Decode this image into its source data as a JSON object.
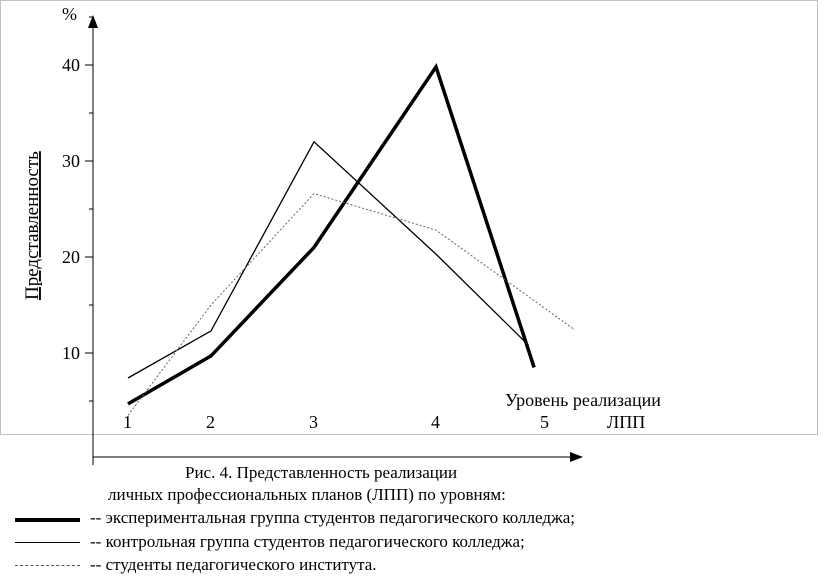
{
  "chart_data": {
    "type": "line",
    "ylabel": "Представленность",
    "y_unit": "%",
    "xlabel_line1": "Уровень реализации",
    "xlabel_line2": "ЛПП",
    "x_ticks": [
      "1",
      "2",
      "3",
      "4",
      "5"
    ],
    "y_ticks": [
      10,
      20,
      30,
      40
    ],
    "ylim": [
      0,
      45
    ],
    "grid": false,
    "series": [
      {
        "name": "экспериментальная группа студентов педагогического колледжа",
        "style": "thick",
        "color": "#000000",
        "points": [
          [
            1,
            4.7
          ],
          [
            2,
            9.7
          ],
          [
            3,
            21
          ],
          [
            4,
            39.8
          ],
          [
            4.9,
            8.5
          ]
        ]
      },
      {
        "name": "контрольная группа студентов педагогического колледжа",
        "style": "thin",
        "color": "#000000",
        "points": [
          [
            1,
            7.4
          ],
          [
            2,
            12.3
          ],
          [
            3,
            32
          ],
          [
            4,
            20.3
          ],
          [
            4.85,
            10.8
          ]
        ]
      },
      {
        "name": "студенты педагогического института",
        "style": "dotted",
        "color": "#777777",
        "points": [
          [
            1,
            3.5
          ],
          [
            2,
            15
          ],
          [
            3,
            26.6
          ],
          [
            4,
            22.8
          ],
          [
            5.3,
            12.4
          ]
        ]
      }
    ]
  },
  "caption": {
    "line1": "Рис. 4. Представленность реализации",
    "line2": "личных профессиональных планов (ЛПП) по уровням:"
  },
  "legend": [
    {
      "prefix": "--",
      "label": "экспериментальная группа студентов педагогического колледжа;",
      "style": "thick"
    },
    {
      "prefix": "--",
      "label": "контрольная группа студентов педагогического колледжа;",
      "style": "thin"
    },
    {
      "prefix": "--",
      "label": "студенты педагогического института.",
      "style": "dotted"
    }
  ]
}
